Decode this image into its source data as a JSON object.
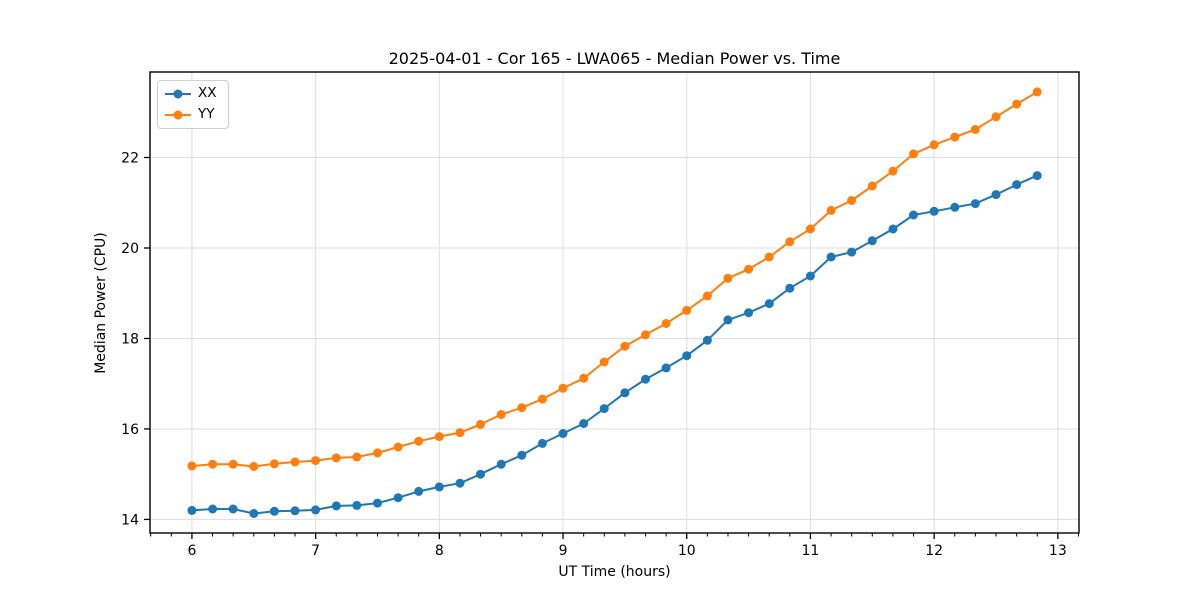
{
  "chart_data": {
    "type": "line",
    "title": "2025-04-01 - Cor 165 - LWA065 - Median Power vs. Time",
    "xlabel": "UT Time (hours)",
    "ylabel": "Median Power (CPU)",
    "x": [
      6.0,
      6.167,
      6.333,
      6.5,
      6.667,
      6.833,
      7.0,
      7.167,
      7.333,
      7.5,
      7.667,
      7.833,
      8.0,
      8.167,
      8.333,
      8.5,
      8.667,
      8.833,
      9.0,
      9.167,
      9.333,
      9.5,
      9.667,
      9.833,
      10.0,
      10.167,
      10.333,
      10.5,
      10.667,
      10.833,
      11.0,
      11.167,
      11.333,
      11.5,
      11.667,
      11.833,
      12.0,
      12.167,
      12.333,
      12.5,
      12.667,
      12.833
    ],
    "series": [
      {
        "name": "XX",
        "color": "#1f77b4",
        "values": [
          14.2,
          14.23,
          14.23,
          14.13,
          14.18,
          14.19,
          14.21,
          14.3,
          14.31,
          14.36,
          14.48,
          14.62,
          14.72,
          14.8,
          15.0,
          15.22,
          15.42,
          15.68,
          15.9,
          16.12,
          16.45,
          16.8,
          17.1,
          17.35,
          17.62,
          17.96,
          18.41,
          18.57,
          18.77,
          19.11,
          19.38,
          19.8,
          19.91,
          20.16,
          20.42,
          20.73,
          20.81,
          20.9,
          20.98,
          21.18,
          21.4,
          21.6
        ]
      },
      {
        "name": "YY",
        "color": "#ff7f0e",
        "values": [
          15.18,
          15.22,
          15.22,
          15.17,
          15.23,
          15.27,
          15.3,
          15.36,
          15.38,
          15.47,
          15.6,
          15.73,
          15.83,
          15.92,
          16.1,
          16.32,
          16.47,
          16.66,
          16.9,
          17.12,
          17.48,
          17.83,
          18.08,
          18.33,
          18.62,
          18.94,
          19.33,
          19.53,
          19.8,
          20.14,
          20.42,
          20.83,
          21.05,
          21.37,
          21.7,
          22.08,
          22.28,
          22.45,
          22.62,
          22.9,
          23.18,
          23.45
        ]
      }
    ],
    "xlim": [
      5.661,
      13.171
    ],
    "ylim": [
      13.7,
      23.89
    ],
    "x_ticks": [
      6,
      7,
      8,
      9,
      10,
      11,
      12,
      13
    ],
    "y_ticks": [
      14,
      16,
      18,
      20,
      22
    ],
    "x_minor_step_hours": 0.1667,
    "grid": true,
    "legend_position": "upper left",
    "marker": "circle",
    "grid_color": "#dedede",
    "axis_color": "#000000"
  }
}
